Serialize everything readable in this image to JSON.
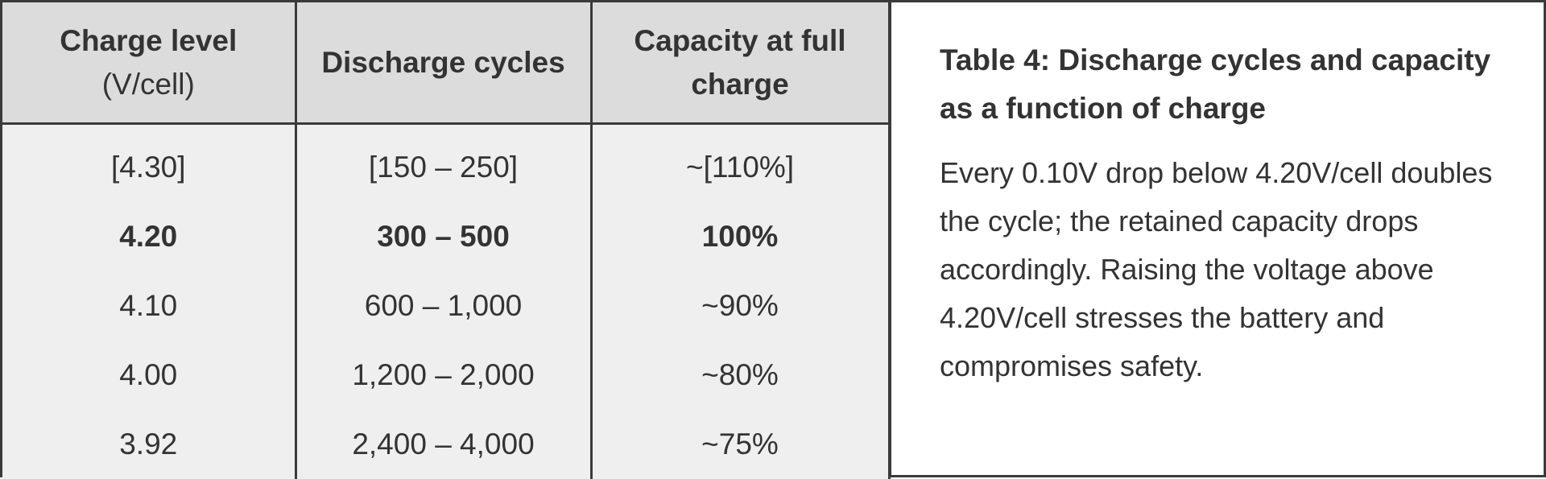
{
  "table": {
    "headers": [
      {
        "label": "Charge level",
        "sub": "(V/cell)"
      },
      {
        "label": "Discharge cycles",
        "sub": ""
      },
      {
        "label": "Capacity at full charge",
        "sub": ""
      }
    ],
    "rows": [
      {
        "charge_level": "[4.30]",
        "discharge_cycles": "[150 – 250]",
        "capacity": "~[110%]",
        "bold": false
      },
      {
        "charge_level": "4.20",
        "discharge_cycles": "300 – 500",
        "capacity": "100%",
        "bold": true
      },
      {
        "charge_level": "4.10",
        "discharge_cycles": "600 – 1,000",
        "capacity": "~90%",
        "bold": false
      },
      {
        "charge_level": "4.00",
        "discharge_cycles": "1,200 – 2,000",
        "capacity": "~80%",
        "bold": false
      },
      {
        "charge_level": "3.92",
        "discharge_cycles": "2,400 – 4,000",
        "capacity": "~75%",
        "bold": false
      }
    ]
  },
  "caption": {
    "title_lines": [
      "Table 4: Discharge cycles and capacity",
      "as a function of charge"
    ],
    "body": "Every 0.10V drop below 4.20V/cell doubles the cycle; the retained capacity drops accordingly. Raising the voltage above 4.20V/cell stresses the battery and compromises safety."
  },
  "colors": {
    "header_bg": "#dcdcdc",
    "cell_bg": "#efefef",
    "border": "#3a3a3a",
    "text": "#333333"
  }
}
